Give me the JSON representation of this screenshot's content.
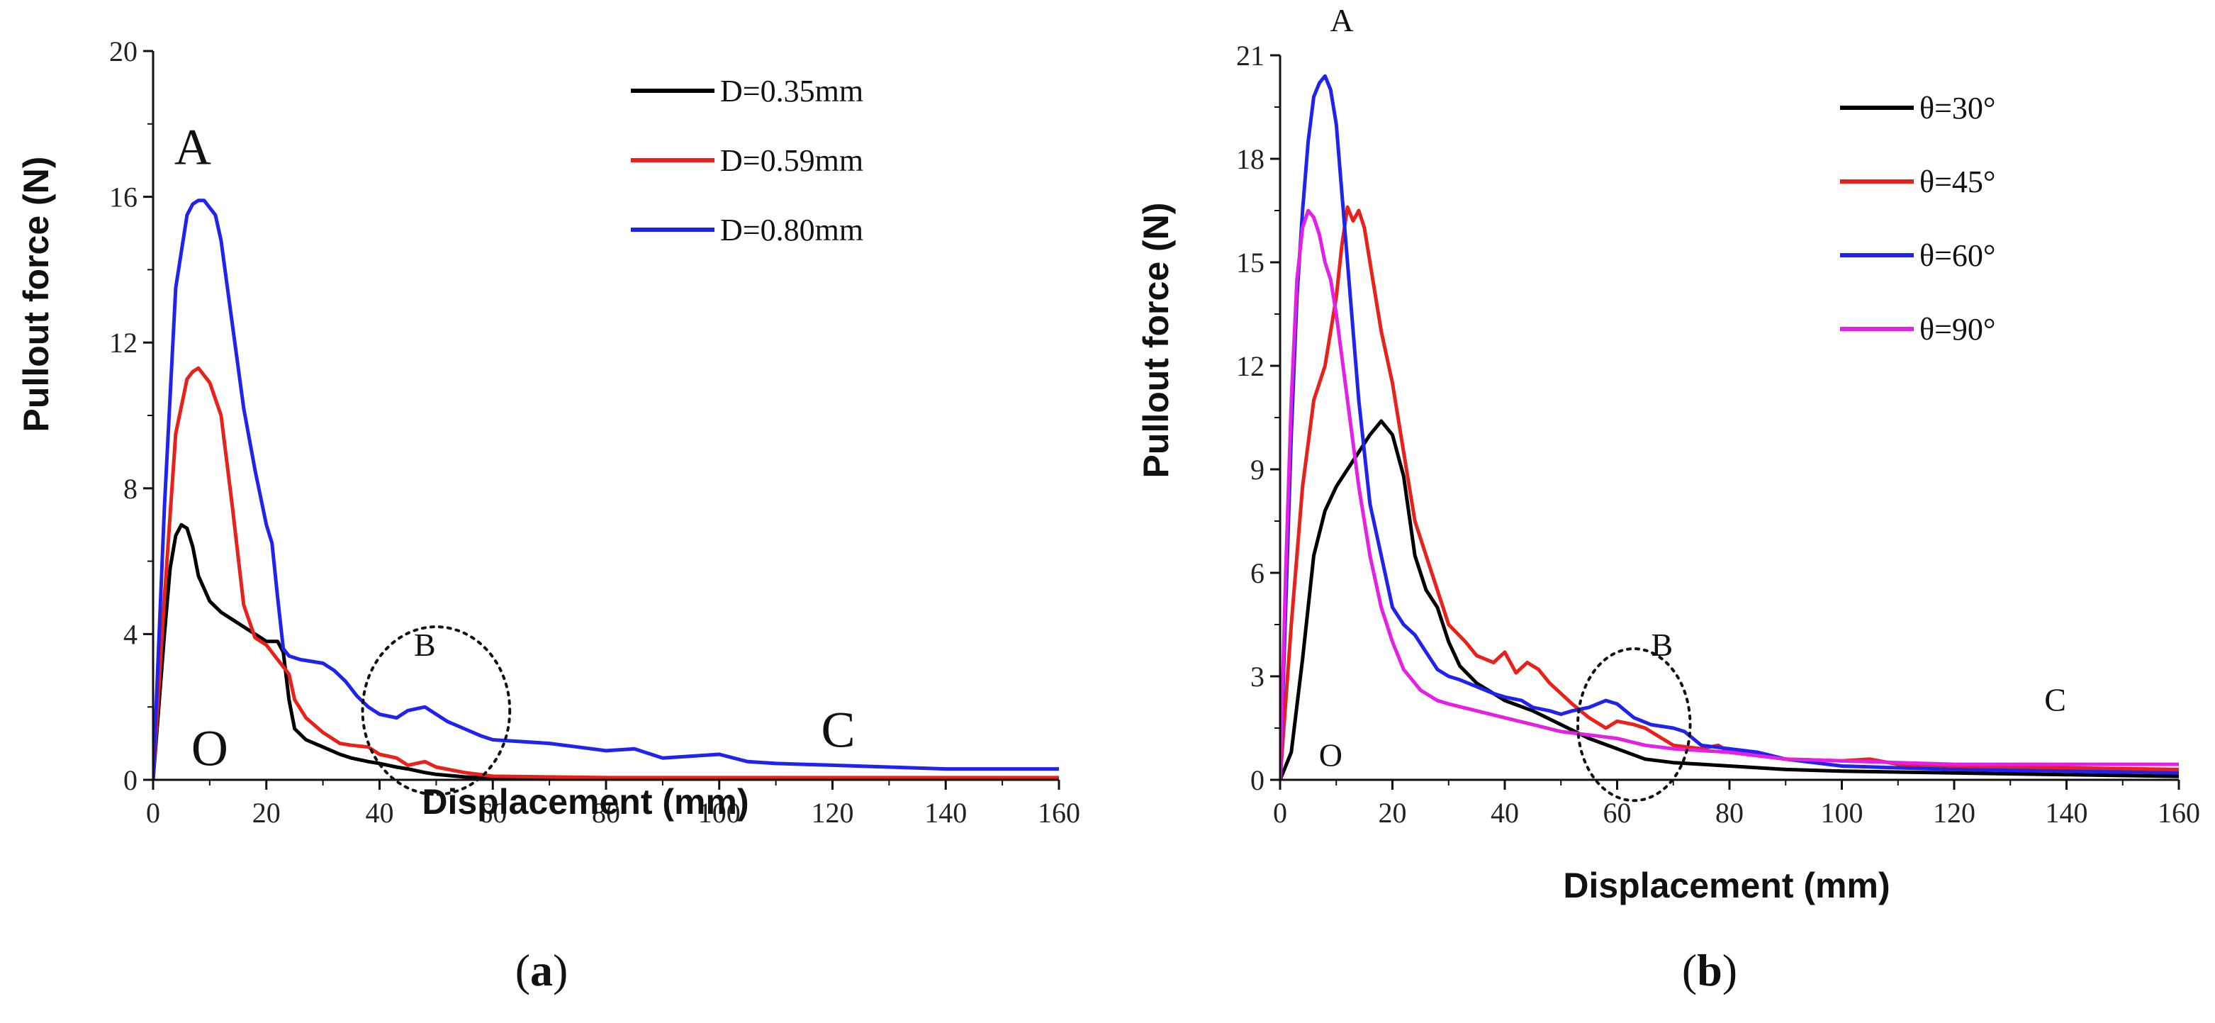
{
  "chart_data": [
    {
      "type": "line",
      "panel_label": "a",
      "xlabel": "Displacement (mm)",
      "ylabel": "Pullout force (N)",
      "xlim": [
        0,
        160
      ],
      "ylim": [
        0,
        20
      ],
      "xticks": [
        0,
        20,
        40,
        60,
        80,
        100,
        120,
        140,
        160
      ],
      "yticks": [
        0,
        4,
        8,
        12,
        16,
        20
      ],
      "legend_position": "top-right",
      "annotations": [
        {
          "text": "A",
          "x": 7,
          "y": 16.9,
          "size": "large"
        },
        {
          "text": "B",
          "x": 48,
          "y": 3.4,
          "size": "small"
        },
        {
          "text": "C",
          "x": 121,
          "y": 0.9,
          "size": "large"
        },
        {
          "text": "O",
          "x": 10,
          "y": 0.4,
          "size": "large"
        }
      ],
      "ellipse": {
        "cx": 50,
        "cy": 1.9,
        "rx": 13,
        "ry": 2.3
      },
      "series": [
        {
          "name": "D=0.35mm",
          "color": "#000000",
          "x": [
            0,
            2,
            3,
            4,
            5,
            6,
            7,
            8,
            10,
            12,
            15,
            18,
            20,
            22,
            23,
            24,
            25,
            27,
            30,
            33,
            35,
            38,
            40,
            43,
            45,
            48,
            50,
            55,
            60,
            80,
            100,
            120,
            140,
            160
          ],
          "y": [
            0,
            4.0,
            5.8,
            6.7,
            7.0,
            6.9,
            6.4,
            5.6,
            4.9,
            4.6,
            4.3,
            4.0,
            3.8,
            3.8,
            3.5,
            2.2,
            1.4,
            1.1,
            0.9,
            0.7,
            0.6,
            0.5,
            0.45,
            0.35,
            0.3,
            0.2,
            0.15,
            0.08,
            0.05,
            0.05,
            0.05,
            0.05,
            0.05,
            0.05
          ]
        },
        {
          "name": "D=0.59mm",
          "color": "#e8211a",
          "x": [
            0,
            2,
            4,
            6,
            7,
            8,
            10,
            12,
            14,
            16,
            18,
            20,
            22,
            24,
            25,
            27,
            30,
            33,
            35,
            38,
            40,
            43,
            45,
            48,
            50,
            55,
            60,
            70,
            80,
            100,
            120,
            140,
            160
          ],
          "y": [
            0,
            5.0,
            9.5,
            11.0,
            11.2,
            11.3,
            10.9,
            10.0,
            7.5,
            4.8,
            3.9,
            3.7,
            3.3,
            2.9,
            2.2,
            1.7,
            1.3,
            1.0,
            0.95,
            0.9,
            0.7,
            0.6,
            0.4,
            0.5,
            0.35,
            0.2,
            0.1,
            0.08,
            0.06,
            0.06,
            0.06,
            0.06,
            0.06
          ]
        },
        {
          "name": "D=0.80mm",
          "color": "#2222ee",
          "x": [
            0,
            2,
            4,
            6,
            7,
            8,
            9,
            10,
            11,
            12,
            14,
            16,
            18,
            20,
            21,
            22,
            23,
            24,
            26,
            30,
            32,
            34,
            36,
            38,
            40,
            43,
            45,
            48,
            50,
            52,
            55,
            58,
            60,
            65,
            70,
            75,
            80,
            85,
            90,
            95,
            100,
            105,
            110,
            120,
            130,
            140,
            150,
            160
          ],
          "y": [
            0,
            7.5,
            13.5,
            15.5,
            15.8,
            15.9,
            15.9,
            15.7,
            15.5,
            14.8,
            12.5,
            10.2,
            8.5,
            7.0,
            6.5,
            5.0,
            3.6,
            3.4,
            3.3,
            3.2,
            3.0,
            2.7,
            2.3,
            2.0,
            1.8,
            1.7,
            1.9,
            2.0,
            1.8,
            1.6,
            1.4,
            1.2,
            1.1,
            1.05,
            1.0,
            0.9,
            0.8,
            0.85,
            0.6,
            0.65,
            0.7,
            0.5,
            0.45,
            0.4,
            0.35,
            0.3,
            0.3,
            0.3
          ]
        }
      ]
    },
    {
      "type": "line",
      "panel_label": "b",
      "xlabel": "Displacement (mm)",
      "ylabel": "Pullout force (N)",
      "xlim": [
        0,
        160
      ],
      "ylim": [
        0,
        21
      ],
      "xticks": [
        0,
        20,
        40,
        60,
        80,
        100,
        120,
        140,
        160
      ],
      "yticks": [
        0,
        3,
        6,
        9,
        12,
        15,
        18,
        21
      ],
      "legend_position": "top-right",
      "annotations": [
        {
          "text": "A",
          "x": 11,
          "y": 21.7,
          "size": "small"
        },
        {
          "text": "B",
          "x": 68,
          "y": 3.6,
          "size": "small"
        },
        {
          "text": "C",
          "x": 138,
          "y": 2.0,
          "size": "small"
        },
        {
          "text": "O",
          "x": 9,
          "y": 0.4,
          "size": "small"
        }
      ],
      "ellipse": {
        "cx": 63,
        "cy": 1.6,
        "rx": 10,
        "ry": 2.2
      },
      "series": [
        {
          "name": "θ=30°",
          "color": "#000000",
          "x": [
            0,
            2,
            4,
            6,
            8,
            10,
            12,
            14,
            16,
            18,
            20,
            22,
            24,
            26,
            28,
            30,
            32,
            35,
            38,
            40,
            45,
            50,
            55,
            60,
            65,
            70,
            80,
            90,
            100,
            120,
            140,
            160
          ],
          "y": [
            0,
            0.8,
            3.5,
            6.5,
            7.8,
            8.5,
            9.0,
            9.5,
            10.0,
            10.4,
            10.0,
            8.8,
            6.5,
            5.5,
            5.0,
            4.0,
            3.3,
            2.8,
            2.5,
            2.3,
            2.0,
            1.6,
            1.2,
            0.9,
            0.6,
            0.5,
            0.4,
            0.3,
            0.25,
            0.2,
            0.15,
            0.1
          ]
        },
        {
          "name": "θ=45°",
          "color": "#e8211a",
          "x": [
            0,
            2,
            4,
            6,
            8,
            10,
            11,
            12,
            13,
            14,
            15,
            16,
            18,
            20,
            22,
            24,
            26,
            28,
            30,
            33,
            35,
            38,
            40,
            42,
            44,
            46,
            48,
            50,
            52,
            55,
            58,
            60,
            63,
            65,
            68,
            70,
            75,
            78,
            80,
            85,
            90,
            100,
            105,
            110,
            120,
            140,
            160
          ],
          "y": [
            0,
            4.5,
            8.5,
            11.0,
            12.0,
            14.0,
            15.5,
            16.6,
            16.2,
            16.5,
            16.0,
            15.0,
            13.0,
            11.5,
            9.5,
            7.5,
            6.5,
            5.5,
            4.5,
            4.0,
            3.6,
            3.4,
            3.7,
            3.1,
            3.4,
            3.2,
            2.8,
            2.5,
            2.2,
            1.8,
            1.5,
            1.7,
            1.6,
            1.5,
            1.2,
            1.0,
            0.9,
            1.0,
            0.8,
            0.7,
            0.6,
            0.55,
            0.6,
            0.45,
            0.4,
            0.35,
            0.3
          ]
        },
        {
          "name": "θ=60°",
          "color": "#2222ee",
          "x": [
            0,
            1,
            2,
            3,
            4,
            5,
            6,
            7,
            8,
            9,
            10,
            11,
            12,
            14,
            16,
            18,
            20,
            22,
            24,
            26,
            28,
            30,
            32,
            35,
            38,
            40,
            43,
            45,
            48,
            50,
            52,
            55,
            58,
            60,
            63,
            66,
            70,
            72,
            75,
            80,
            85,
            90,
            95,
            100,
            110,
            120,
            140,
            160
          ],
          "y": [
            0,
            5.0,
            10.0,
            14.0,
            16.5,
            18.5,
            19.8,
            20.2,
            20.4,
            20.0,
            19.0,
            17.0,
            15.0,
            11.0,
            8.0,
            6.5,
            5.0,
            4.5,
            4.2,
            3.7,
            3.2,
            3.0,
            2.9,
            2.7,
            2.5,
            2.4,
            2.3,
            2.1,
            2.0,
            1.9,
            2.0,
            2.1,
            2.3,
            2.2,
            1.8,
            1.6,
            1.5,
            1.4,
            1.0,
            0.9,
            0.8,
            0.6,
            0.5,
            0.4,
            0.35,
            0.3,
            0.25,
            0.2
          ]
        },
        {
          "name": "θ=90°",
          "color": "#e520e5",
          "x": [
            0,
            1,
            2,
            3,
            4,
            5,
            6,
            7,
            8,
            9,
            10,
            12,
            14,
            16,
            18,
            20,
            22,
            25,
            28,
            30,
            35,
            40,
            45,
            50,
            55,
            60,
            65,
            70,
            80,
            90,
            100,
            110,
            120,
            130,
            140,
            150,
            160
          ],
          "y": [
            0,
            6.0,
            11.0,
            14.5,
            16.0,
            16.5,
            16.3,
            15.8,
            15.0,
            14.5,
            13.5,
            11.0,
            8.5,
            6.5,
            5.0,
            4.0,
            3.2,
            2.6,
            2.3,
            2.2,
            2.0,
            1.8,
            1.6,
            1.4,
            1.3,
            1.2,
            1.0,
            0.9,
            0.8,
            0.6,
            0.55,
            0.5,
            0.45,
            0.45,
            0.45,
            0.45,
            0.45
          ]
        }
      ]
    }
  ],
  "captions": {
    "a": "a",
    "b": "b"
  }
}
